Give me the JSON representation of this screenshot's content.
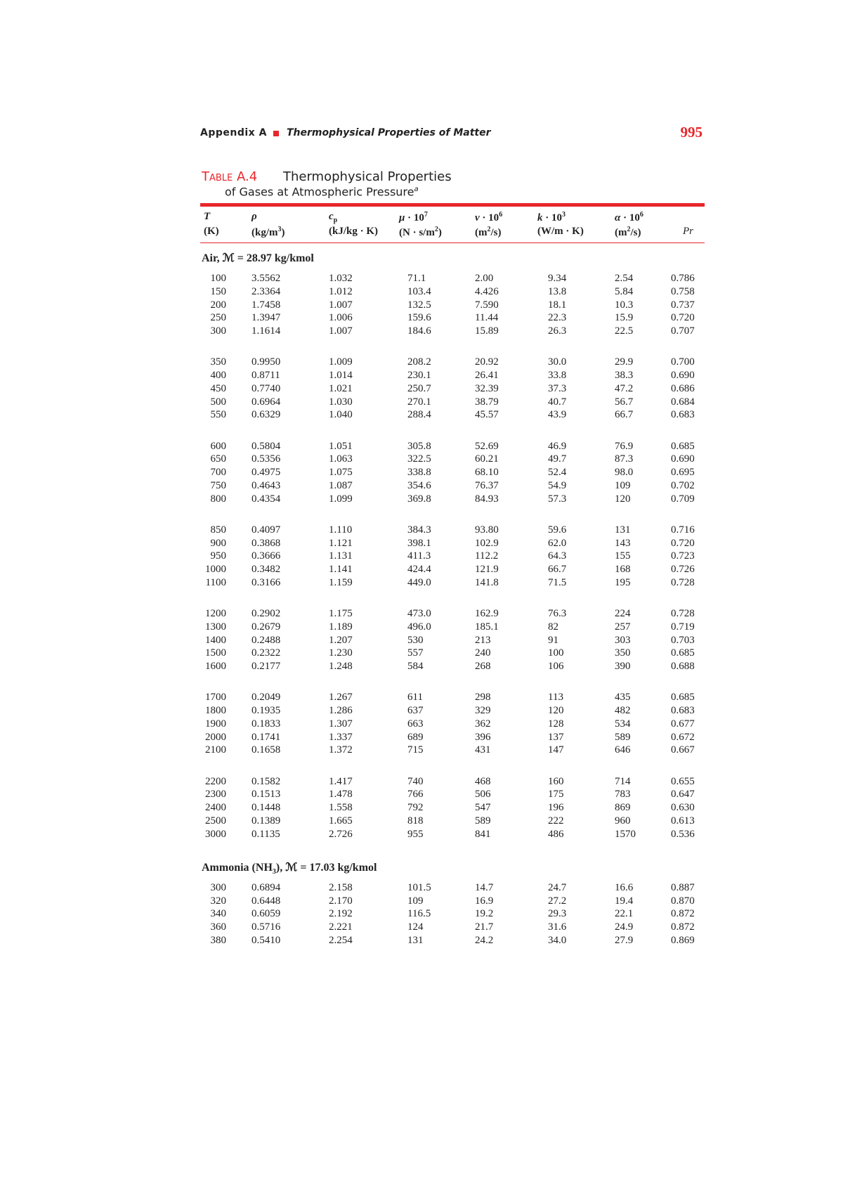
{
  "header": {
    "appendix": "Appendix A",
    "section": "Thermophysical Properties of Matter",
    "page": "995"
  },
  "caption": {
    "label": "Table A.4",
    "line1": "Thermophysical Properties",
    "line2": "of Gases at Atmospheric Pressure",
    "note": "a"
  },
  "table": {
    "columns": [
      {
        "top": [
          {
            "t": "T",
            "i": true
          }
        ],
        "unit": [
          {
            "t": "(K)"
          }
        ]
      },
      {
        "top": [
          {
            "t": "ρ",
            "i": true
          }
        ],
        "unit": [
          {
            "t": "(kg/m"
          },
          {
            "t": "3",
            "sup": true
          },
          {
            "t": ")"
          }
        ]
      },
      {
        "top": [
          {
            "t": "c",
            "i": true
          },
          {
            "t": "p",
            "sub": true
          }
        ],
        "unit": [
          {
            "t": "(kJ/kg · K)"
          }
        ]
      },
      {
        "top": [
          {
            "t": "μ",
            "i": true
          },
          {
            "t": " · 10"
          },
          {
            "t": "7",
            "sup": true
          }
        ],
        "unit": [
          {
            "t": "(N · s/m"
          },
          {
            "t": "2",
            "sup": true
          },
          {
            "t": ")"
          }
        ]
      },
      {
        "top": [
          {
            "t": "ν",
            "i": true
          },
          {
            "t": " · 10"
          },
          {
            "t": "6",
            "sup": true
          }
        ],
        "unit": [
          {
            "t": "(m"
          },
          {
            "t": "2",
            "sup": true
          },
          {
            "t": "/s)"
          }
        ]
      },
      {
        "top": [
          {
            "t": "k",
            "i": true
          },
          {
            "t": " · 10"
          },
          {
            "t": "3",
            "sup": true
          }
        ],
        "unit": [
          {
            "t": "(W/m · K)"
          }
        ]
      },
      {
        "top": [
          {
            "t": "α",
            "i": true
          },
          {
            "t": " · 10"
          },
          {
            "t": "6",
            "sup": true
          }
        ],
        "unit": [
          {
            "t": "(m"
          },
          {
            "t": "2",
            "sup": true
          },
          {
            "t": "/s)"
          }
        ]
      },
      {
        "top": [],
        "unit": [
          {
            "t": "Pr",
            "i": true
          }
        ]
      }
    ],
    "sections": [
      {
        "label": [
          {
            "t": "Air, ℳ = 28.97 kg/kmol"
          }
        ],
        "groups": [
          [
            [
              "100",
              "3.5562",
              "1.032",
              "71.1",
              "2.00",
              "9.34",
              "2.54",
              "0.786"
            ],
            [
              "150",
              "2.3364",
              "1.012",
              "103.4",
              "4.426",
              "13.8",
              "5.84",
              "0.758"
            ],
            [
              "200",
              "1.7458",
              "1.007",
              "132.5",
              "7.590",
              "18.1",
              "10.3",
              "0.737"
            ],
            [
              "250",
              "1.3947",
              "1.006",
              "159.6",
              "11.44",
              "22.3",
              "15.9",
              "0.720"
            ],
            [
              "300",
              "1.1614",
              "1.007",
              "184.6",
              "15.89",
              "26.3",
              "22.5",
              "0.707"
            ]
          ],
          [
            [
              "350",
              "0.9950",
              "1.009",
              "208.2",
              "20.92",
              "30.0",
              "29.9",
              "0.700"
            ],
            [
              "400",
              "0.8711",
              "1.014",
              "230.1",
              "26.41",
              "33.8",
              "38.3",
              "0.690"
            ],
            [
              "450",
              "0.7740",
              "1.021",
              "250.7",
              "32.39",
              "37.3",
              "47.2",
              "0.686"
            ],
            [
              "500",
              "0.6964",
              "1.030",
              "270.1",
              "38.79",
              "40.7",
              "56.7",
              "0.684"
            ],
            [
              "550",
              "0.6329",
              "1.040",
              "288.4",
              "45.57",
              "43.9",
              "66.7",
              "0.683"
            ]
          ],
          [
            [
              "600",
              "0.5804",
              "1.051",
              "305.8",
              "52.69",
              "46.9",
              "76.9",
              "0.685"
            ],
            [
              "650",
              "0.5356",
              "1.063",
              "322.5",
              "60.21",
              "49.7",
              "87.3",
              "0.690"
            ],
            [
              "700",
              "0.4975",
              "1.075",
              "338.8",
              "68.10",
              "52.4",
              "98.0",
              "0.695"
            ],
            [
              "750",
              "0.4643",
              "1.087",
              "354.6",
              "76.37",
              "54.9",
              "109",
              "0.702"
            ],
            [
              "800",
              "0.4354",
              "1.099",
              "369.8",
              "84.93",
              "57.3",
              "120",
              "0.709"
            ]
          ],
          [
            [
              "850",
              "0.4097",
              "1.110",
              "384.3",
              "93.80",
              "59.6",
              "131",
              "0.716"
            ],
            [
              "900",
              "0.3868",
              "1.121",
              "398.1",
              "102.9",
              "62.0",
              "143",
              "0.720"
            ],
            [
              "950",
              "0.3666",
              "1.131",
              "411.3",
              "112.2",
              "64.3",
              "155",
              "0.723"
            ],
            [
              "1000",
              "0.3482",
              "1.141",
              "424.4",
              "121.9",
              "66.7",
              "168",
              "0.726"
            ],
            [
              "1100",
              "0.3166",
              "1.159",
              "449.0",
              "141.8",
              "71.5",
              "195",
              "0.728"
            ]
          ],
          [
            [
              "1200",
              "0.2902",
              "1.175",
              "473.0",
              "162.9",
              "76.3",
              "224",
              "0.728"
            ],
            [
              "1300",
              "0.2679",
              "1.189",
              "496.0",
              "185.1",
              "82",
              "257",
              "0.719"
            ],
            [
              "1400",
              "0.2488",
              "1.207",
              "530",
              "213",
              "91",
              "303",
              "0.703"
            ],
            [
              "1500",
              "0.2322",
              "1.230",
              "557",
              "240",
              "100",
              "350",
              "0.685"
            ],
            [
              "1600",
              "0.2177",
              "1.248",
              "584",
              "268",
              "106",
              "390",
              "0.688"
            ]
          ],
          [
            [
              "1700",
              "0.2049",
              "1.267",
              "611",
              "298",
              "113",
              "435",
              "0.685"
            ],
            [
              "1800",
              "0.1935",
              "1.286",
              "637",
              "329",
              "120",
              "482",
              "0.683"
            ],
            [
              "1900",
              "0.1833",
              "1.307",
              "663",
              "362",
              "128",
              "534",
              "0.677"
            ],
            [
              "2000",
              "0.1741",
              "1.337",
              "689",
              "396",
              "137",
              "589",
              "0.672"
            ],
            [
              "2100",
              "0.1658",
              "1.372",
              "715",
              "431",
              "147",
              "646",
              "0.667"
            ]
          ],
          [
            [
              "2200",
              "0.1582",
              "1.417",
              "740",
              "468",
              "160",
              "714",
              "0.655"
            ],
            [
              "2300",
              "0.1513",
              "1.478",
              "766",
              "506",
              "175",
              "783",
              "0.647"
            ],
            [
              "2400",
              "0.1448",
              "1.558",
              "792",
              "547",
              "196",
              "869",
              "0.630"
            ],
            [
              "2500",
              "0.1389",
              "1.665",
              "818",
              "589",
              "222",
              "960",
              "0.613"
            ],
            [
              "3000",
              "0.1135",
              "2.726",
              "955",
              "841",
              "486",
              "1570",
              "0.536"
            ]
          ]
        ]
      },
      {
        "label": [
          {
            "t": "Ammonia (NH"
          },
          {
            "t": "3",
            "sub": true
          },
          {
            "t": "), ℳ = 17.03 kg/kmol"
          }
        ],
        "groups": [
          [
            [
              "300",
              "0.6894",
              "2.158",
              "101.5",
              "14.7",
              "24.7",
              "16.6",
              "0.887"
            ],
            [
              "320",
              "0.6448",
              "2.170",
              "109",
              "16.9",
              "27.2",
              "19.4",
              "0.870"
            ],
            [
              "340",
              "0.6059",
              "2.192",
              "116.5",
              "19.2",
              "29.3",
              "22.1",
              "0.872"
            ],
            [
              "360",
              "0.5716",
              "2.221",
              "124",
              "21.7",
              "31.6",
              "24.9",
              "0.872"
            ],
            [
              "380",
              "0.5410",
              "2.254",
              "131",
              "24.2",
              "34.0",
              "27.9",
              "0.869"
            ]
          ]
        ]
      }
    ]
  }
}
